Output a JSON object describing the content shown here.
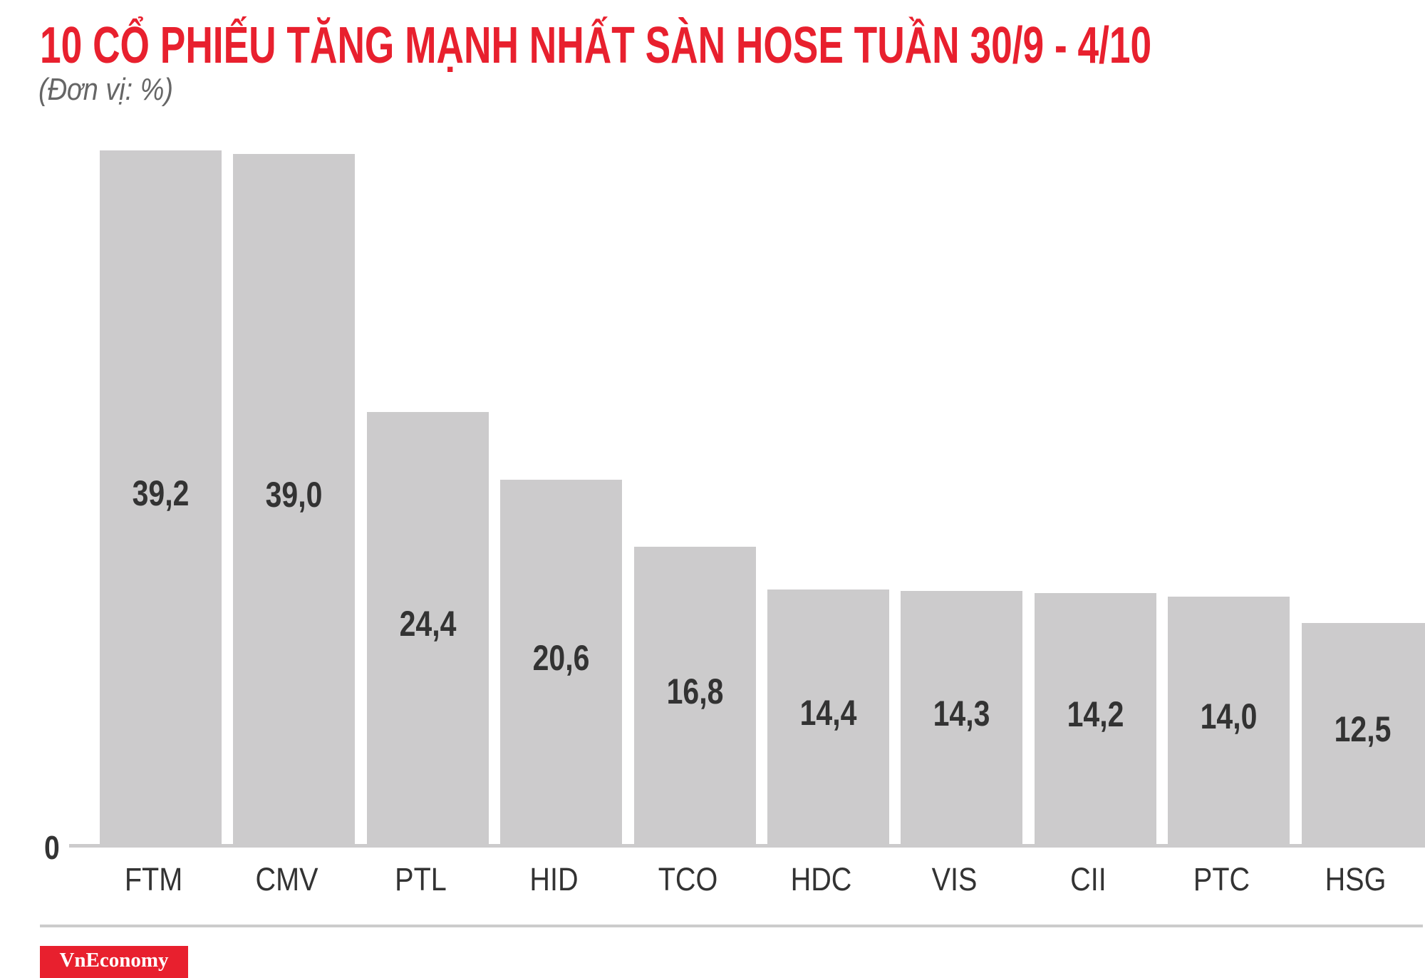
{
  "header": {
    "title": "10 CỔ PHIẾU TĂNG MẠNH NHẤT SÀN HOSE TUẦN 30/9 - 4/10",
    "subtitle": "(Đơn vị: %)"
  },
  "colors": {
    "title": "#E8202E",
    "bar": "#CCCBCC",
    "value_text": "#333333",
    "subtitle": "#666666",
    "logo_bg": "#E8202E"
  },
  "axis": {
    "zero_label": "0"
  },
  "bars": [
    {
      "ticker": "FTM",
      "value_label": "39,2"
    },
    {
      "ticker": "CMV",
      "value_label": "39,0"
    },
    {
      "ticker": "PTL",
      "value_label": "24,4"
    },
    {
      "ticker": "HID",
      "value_label": "20,6"
    },
    {
      "ticker": "TCO",
      "value_label": "16,8"
    },
    {
      "ticker": "HDC",
      "value_label": "14,4"
    },
    {
      "ticker": "VIS",
      "value_label": "14,3"
    },
    {
      "ticker": "CII",
      "value_label": "14,2"
    },
    {
      "ticker": "PTC",
      "value_label": "14,0"
    },
    {
      "ticker": "HSG",
      "value_label": "12,5"
    }
  ],
  "footer": {
    "logo_text": "VnEconomy"
  },
  "chart_data": {
    "type": "bar",
    "title": "10 CỔ PHIẾU TĂNG MẠNH NHẤT SÀN HOSE TUẦN 30/9 - 4/10",
    "subtitle": "(Đơn vị: %)",
    "categories": [
      "FTM",
      "CMV",
      "PTL",
      "HID",
      "TCO",
      "HDC",
      "VIS",
      "CII",
      "PTC",
      "HSG"
    ],
    "values": [
      39.2,
      39.0,
      24.4,
      20.6,
      16.8,
      14.4,
      14.3,
      14.2,
      14.0,
      12.5
    ],
    "xlabel": "",
    "ylabel": "%",
    "ylim": [
      0,
      40
    ],
    "y_ticks": [
      "0"
    ],
    "grid": false,
    "legend": null,
    "data_labels": true
  }
}
